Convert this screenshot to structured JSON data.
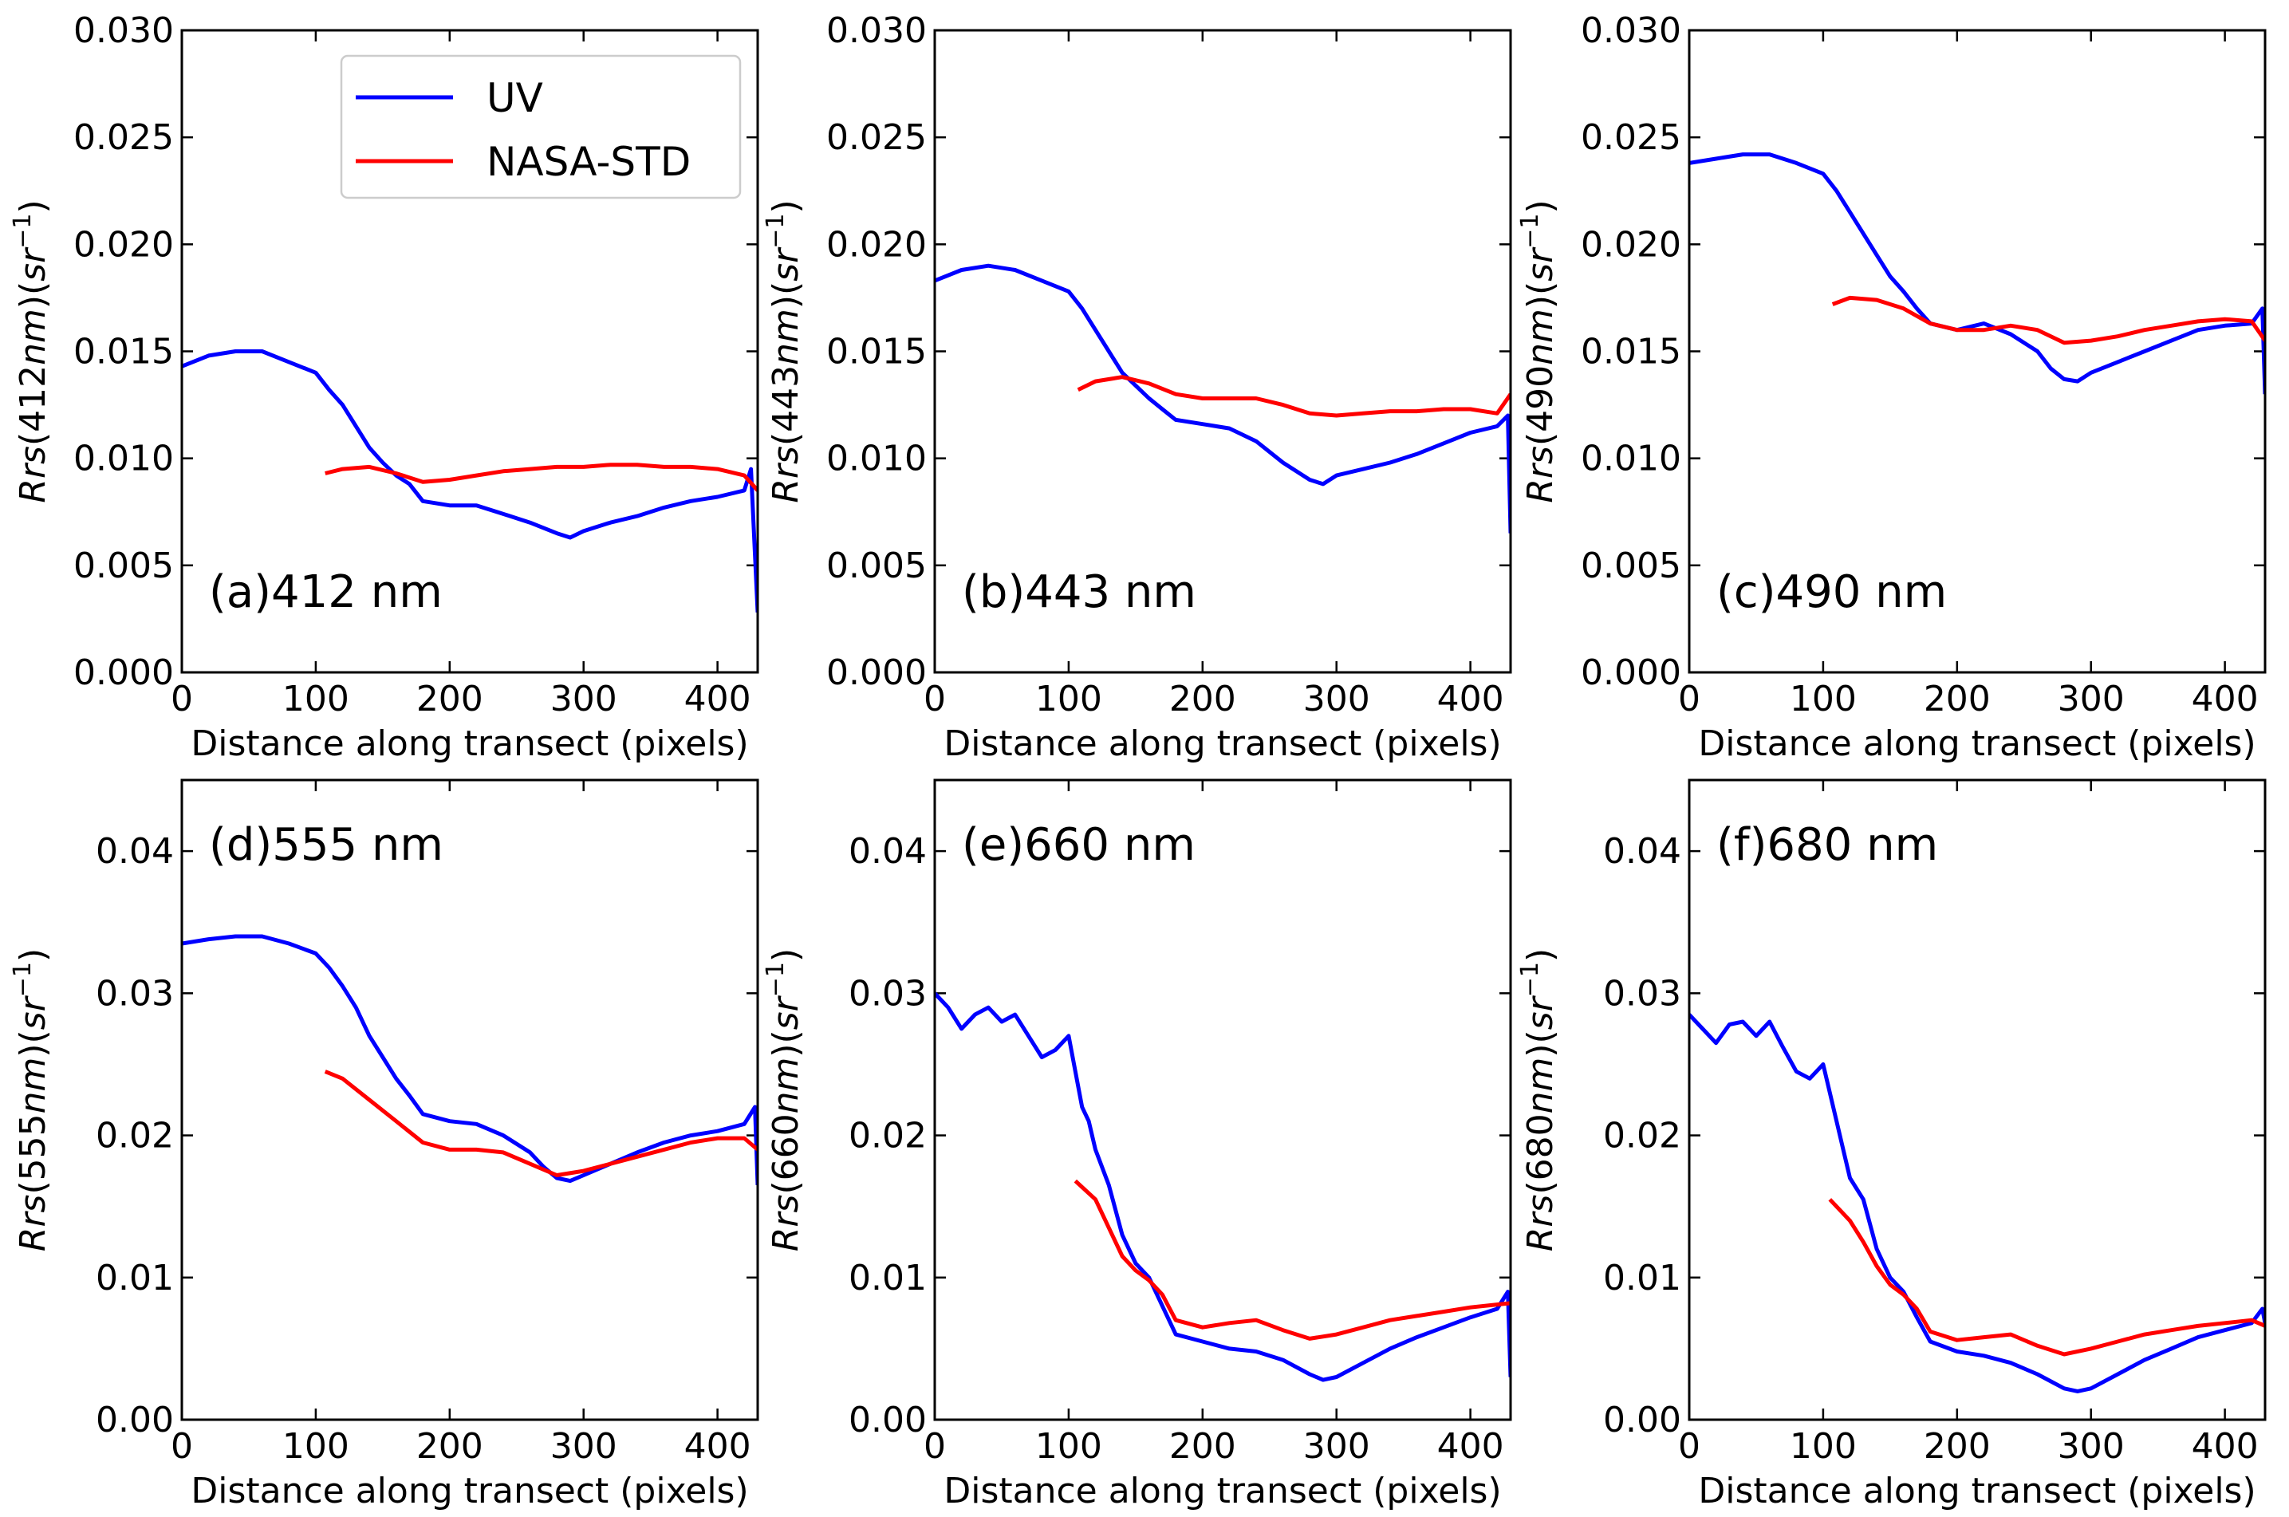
{
  "chart_data": [
    {
      "type": "line",
      "panel_label": "(a)412 nm",
      "xlabel": "Distance along transect (pixels)",
      "ylabel": {
        "italic": "Rrs",
        "mid": "(412",
        "italic2": "nm",
        "mid2": ")(",
        "italic3": "sr",
        "sup": "−1",
        "close": ")"
      },
      "xlim": [
        0,
        430
      ],
      "ylim": [
        0.0,
        0.03
      ],
      "xticks": [
        0,
        100,
        200,
        300,
        400
      ],
      "yticks": [
        "0.000",
        "0.005",
        "0.010",
        "0.015",
        "0.020",
        "0.025",
        "0.030"
      ],
      "series": [
        {
          "name": "UV",
          "color": "#0000ff",
          "x": [
            0,
            20,
            40,
            60,
            80,
            100,
            110,
            120,
            130,
            140,
            150,
            160,
            170,
            180,
            200,
            220,
            240,
            260,
            280,
            290,
            300,
            320,
            340,
            360,
            380,
            400,
            420,
            425,
            430
          ],
          "y": [
            0.0143,
            0.0148,
            0.015,
            0.015,
            0.0145,
            0.014,
            0.0132,
            0.0125,
            0.0115,
            0.0105,
            0.0098,
            0.0092,
            0.0088,
            0.008,
            0.0078,
            0.0078,
            0.0074,
            0.007,
            0.0065,
            0.0063,
            0.0066,
            0.007,
            0.0073,
            0.0077,
            0.008,
            0.0082,
            0.0085,
            0.0095,
            0.0028
          ]
        },
        {
          "name": "NASA-STD",
          "color": "#ff0000",
          "x": [
            107,
            120,
            140,
            160,
            180,
            200,
            220,
            240,
            260,
            280,
            300,
            320,
            340,
            360,
            380,
            400,
            420,
            430
          ],
          "y": [
            0.0093,
            0.0095,
            0.0096,
            0.0093,
            0.0089,
            0.009,
            0.0092,
            0.0094,
            0.0095,
            0.0096,
            0.0096,
            0.0097,
            0.0097,
            0.0096,
            0.0096,
            0.0095,
            0.0092,
            0.0085
          ]
        }
      ],
      "legend": {
        "location": "top-right",
        "entries": [
          "UV",
          "NASA-STD"
        ]
      }
    },
    {
      "type": "line",
      "panel_label": "(b)443 nm",
      "xlabel": "Distance along transect (pixels)",
      "ylabel": {
        "italic": "Rrs",
        "mid": "(443",
        "italic2": "nm",
        "mid2": ")(",
        "italic3": "sr",
        "sup": "−1",
        "close": ")"
      },
      "xlim": [
        0,
        430
      ],
      "ylim": [
        0.0,
        0.03
      ],
      "xticks": [
        0,
        100,
        200,
        300,
        400
      ],
      "yticks": [
        "0.000",
        "0.005",
        "0.010",
        "0.015",
        "0.020",
        "0.025",
        "0.030"
      ],
      "series": [
        {
          "name": "UV",
          "color": "#0000ff",
          "x": [
            0,
            20,
            40,
            60,
            80,
            100,
            110,
            120,
            130,
            140,
            150,
            160,
            170,
            180,
            200,
            220,
            240,
            260,
            280,
            290,
            300,
            320,
            340,
            360,
            380,
            400,
            420,
            428,
            430
          ],
          "y": [
            0.0183,
            0.0188,
            0.019,
            0.0188,
            0.0183,
            0.0178,
            0.017,
            0.016,
            0.015,
            0.014,
            0.0134,
            0.0128,
            0.0123,
            0.0118,
            0.0116,
            0.0114,
            0.0108,
            0.0098,
            0.009,
            0.0088,
            0.0092,
            0.0095,
            0.0098,
            0.0102,
            0.0107,
            0.0112,
            0.0115,
            0.012,
            0.0065
          ]
        },
        {
          "name": "NASA-STD",
          "color": "#ff0000",
          "x": [
            107,
            120,
            140,
            160,
            180,
            200,
            220,
            240,
            260,
            280,
            300,
            320,
            340,
            360,
            380,
            400,
            420,
            430
          ],
          "y": [
            0.0132,
            0.0136,
            0.0138,
            0.0135,
            0.013,
            0.0128,
            0.0128,
            0.0128,
            0.0125,
            0.0121,
            0.012,
            0.0121,
            0.0122,
            0.0122,
            0.0123,
            0.0123,
            0.0121,
            0.013
          ]
        }
      ]
    },
    {
      "type": "line",
      "panel_label": "(c)490 nm",
      "xlabel": "Distance along transect (pixels)",
      "ylabel": {
        "italic": "Rrs",
        "mid": "(490",
        "italic2": "nm",
        "mid2": ")(",
        "italic3": "sr",
        "sup": "−1",
        "close": ")"
      },
      "xlim": [
        0,
        430
      ],
      "ylim": [
        0.0,
        0.03
      ],
      "xticks": [
        0,
        100,
        200,
        300,
        400
      ],
      "yticks": [
        "0.000",
        "0.005",
        "0.010",
        "0.015",
        "0.020",
        "0.025",
        "0.030"
      ],
      "series": [
        {
          "name": "UV",
          "color": "#0000ff",
          "x": [
            0,
            20,
            40,
            60,
            80,
            100,
            110,
            120,
            130,
            140,
            150,
            160,
            170,
            180,
            200,
            220,
            240,
            260,
            270,
            280,
            290,
            300,
            320,
            340,
            360,
            380,
            400,
            420,
            428,
            430
          ],
          "y": [
            0.0238,
            0.024,
            0.0242,
            0.0242,
            0.0238,
            0.0233,
            0.0225,
            0.0215,
            0.0205,
            0.0195,
            0.0185,
            0.0178,
            0.017,
            0.0163,
            0.016,
            0.0163,
            0.0158,
            0.015,
            0.0142,
            0.0137,
            0.0136,
            0.014,
            0.0145,
            0.015,
            0.0155,
            0.016,
            0.0162,
            0.0163,
            0.017,
            0.013
          ]
        },
        {
          "name": "NASA-STD",
          "color": "#ff0000",
          "x": [
            107,
            120,
            140,
            160,
            180,
            200,
            220,
            240,
            260,
            280,
            300,
            320,
            340,
            360,
            380,
            400,
            420,
            430
          ],
          "y": [
            0.0172,
            0.0175,
            0.0174,
            0.017,
            0.0163,
            0.016,
            0.016,
            0.0162,
            0.016,
            0.0154,
            0.0155,
            0.0157,
            0.016,
            0.0162,
            0.0164,
            0.0165,
            0.0164,
            0.0155
          ]
        }
      ]
    },
    {
      "type": "line",
      "panel_label": "(d)555 nm",
      "xlabel": "Distance along transect (pixels)",
      "ylabel": {
        "italic": "Rrs",
        "mid": "(555",
        "italic2": "nm",
        "mid2": ")(",
        "italic3": "sr",
        "sup": "−1",
        "close": ")"
      },
      "xlim": [
        0,
        430
      ],
      "ylim": [
        0.0,
        0.045
      ],
      "xticks": [
        0,
        100,
        200,
        300,
        400
      ],
      "yticks": [
        "0.00",
        "0.01",
        "0.02",
        "0.03",
        "0.04"
      ],
      "series": [
        {
          "name": "UV",
          "color": "#0000ff",
          "x": [
            0,
            20,
            40,
            60,
            80,
            100,
            110,
            120,
            130,
            140,
            150,
            160,
            170,
            180,
            200,
            220,
            240,
            260,
            270,
            280,
            290,
            300,
            320,
            340,
            360,
            380,
            400,
            420,
            428,
            430
          ],
          "y": [
            0.0335,
            0.0338,
            0.034,
            0.034,
            0.0335,
            0.0328,
            0.0318,
            0.0305,
            0.029,
            0.027,
            0.0255,
            0.024,
            0.0228,
            0.0215,
            0.021,
            0.0208,
            0.02,
            0.0188,
            0.0178,
            0.017,
            0.0168,
            0.0172,
            0.018,
            0.0188,
            0.0195,
            0.02,
            0.0203,
            0.0208,
            0.022,
            0.0165
          ]
        },
        {
          "name": "NASA-STD",
          "color": "#ff0000",
          "x": [
            107,
            120,
            140,
            160,
            180,
            200,
            220,
            240,
            260,
            280,
            300,
            320,
            340,
            360,
            380,
            400,
            420,
            430
          ],
          "y": [
            0.0245,
            0.024,
            0.0225,
            0.021,
            0.0195,
            0.019,
            0.019,
            0.0188,
            0.018,
            0.0172,
            0.0175,
            0.018,
            0.0185,
            0.019,
            0.0195,
            0.0198,
            0.0198,
            0.019
          ]
        }
      ]
    },
    {
      "type": "line",
      "panel_label": "(e)660 nm",
      "xlabel": "Distance along transect (pixels)",
      "ylabel": {
        "italic": "Rrs",
        "mid": "(660",
        "italic2": "nm",
        "mid2": ")(",
        "italic3": "sr",
        "sup": "−1",
        "close": ")"
      },
      "xlim": [
        0,
        430
      ],
      "ylim": [
        0.0,
        0.045
      ],
      "xticks": [
        0,
        100,
        200,
        300,
        400
      ],
      "yticks": [
        "0.00",
        "0.01",
        "0.02",
        "0.03",
        "0.04"
      ],
      "series": [
        {
          "name": "UV",
          "color": "#0000ff",
          "x": [
            0,
            10,
            20,
            30,
            40,
            50,
            60,
            70,
            80,
            90,
            100,
            110,
            115,
            120,
            130,
            140,
            150,
            160,
            170,
            180,
            200,
            220,
            240,
            260,
            280,
            290,
            300,
            320,
            340,
            360,
            380,
            400,
            420,
            428,
            430
          ],
          "y": [
            0.03,
            0.029,
            0.0275,
            0.0285,
            0.029,
            0.028,
            0.0285,
            0.027,
            0.0255,
            0.026,
            0.027,
            0.022,
            0.021,
            0.019,
            0.0165,
            0.013,
            0.011,
            0.01,
            0.008,
            0.006,
            0.0055,
            0.005,
            0.0048,
            0.0042,
            0.0032,
            0.0028,
            0.003,
            0.004,
            0.005,
            0.0058,
            0.0065,
            0.0072,
            0.0078,
            0.009,
            0.003
          ]
        },
        {
          "name": "NASA-STD",
          "color": "#ff0000",
          "x": [
            105,
            120,
            130,
            140,
            150,
            160,
            170,
            180,
            200,
            220,
            240,
            260,
            280,
            300,
            320,
            340,
            360,
            380,
            400,
            420,
            430
          ],
          "y": [
            0.0168,
            0.0155,
            0.0135,
            0.0115,
            0.0105,
            0.0098,
            0.0088,
            0.007,
            0.0065,
            0.0068,
            0.007,
            0.0063,
            0.0057,
            0.006,
            0.0065,
            0.007,
            0.0073,
            0.0076,
            0.0079,
            0.0081,
            0.0082
          ]
        }
      ]
    },
    {
      "type": "line",
      "panel_label": "(f)680 nm",
      "xlabel": "Distance along transect (pixels)",
      "ylabel": {
        "italic": "Rrs",
        "mid": "(680",
        "italic2": "nm",
        "mid2": ")(",
        "italic3": "sr",
        "sup": "−1",
        "close": ")"
      },
      "xlim": [
        0,
        430
      ],
      "ylim": [
        0.0,
        0.045
      ],
      "xticks": [
        0,
        100,
        200,
        300,
        400
      ],
      "yticks": [
        "0.00",
        "0.01",
        "0.02",
        "0.03",
        "0.04"
      ],
      "series": [
        {
          "name": "UV",
          "color": "#0000ff",
          "x": [
            0,
            10,
            20,
            30,
            40,
            50,
            60,
            70,
            80,
            90,
            100,
            110,
            115,
            120,
            130,
            140,
            150,
            160,
            170,
            180,
            200,
            220,
            240,
            260,
            280,
            290,
            300,
            320,
            340,
            360,
            380,
            400,
            420,
            428,
            430
          ],
          "y": [
            0.0285,
            0.0275,
            0.0265,
            0.0278,
            0.028,
            0.027,
            0.028,
            0.0262,
            0.0245,
            0.024,
            0.025,
            0.021,
            0.019,
            0.017,
            0.0155,
            0.012,
            0.01,
            0.009,
            0.0072,
            0.0055,
            0.0048,
            0.0045,
            0.004,
            0.0032,
            0.0022,
            0.002,
            0.0022,
            0.0032,
            0.0042,
            0.005,
            0.0058,
            0.0063,
            0.0068,
            0.0078,
            0.0068
          ]
        },
        {
          "name": "NASA-STD",
          "color": "#ff0000",
          "x": [
            105,
            120,
            130,
            140,
            150,
            160,
            170,
            180,
            200,
            220,
            240,
            260,
            280,
            300,
            320,
            340,
            360,
            380,
            400,
            420,
            430
          ],
          "y": [
            0.0155,
            0.014,
            0.0125,
            0.0108,
            0.0095,
            0.0088,
            0.0078,
            0.0062,
            0.0056,
            0.0058,
            0.006,
            0.0052,
            0.0046,
            0.005,
            0.0055,
            0.006,
            0.0063,
            0.0066,
            0.0068,
            0.007,
            0.0066
          ]
        }
      ]
    }
  ]
}
